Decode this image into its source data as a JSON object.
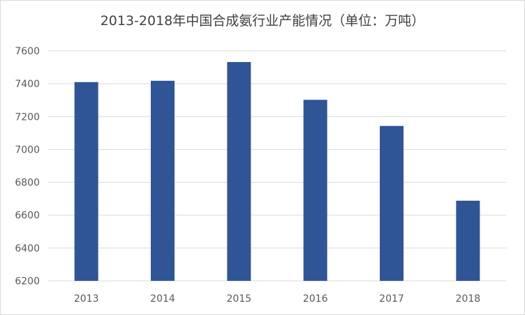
{
  "chart_data": {
    "type": "bar",
    "title": "2013-2018年中国合成氨行业产能情况（单位：万吨）",
    "categories": [
      "2013",
      "2014",
      "2015",
      "2016",
      "2017",
      "2018"
    ],
    "values": [
      7410,
      7418,
      7532,
      7302,
      7143,
      6688
    ],
    "xlabel": "",
    "ylabel": "",
    "ylim": [
      6200,
      7600
    ],
    "yticks": [
      "6200",
      "6400",
      "6600",
      "6800",
      "7000",
      "7200",
      "7400",
      "7600"
    ],
    "grid": true,
    "legend": "none",
    "bar_color": "#2f5597",
    "grid_color": "#d9d9d9"
  }
}
